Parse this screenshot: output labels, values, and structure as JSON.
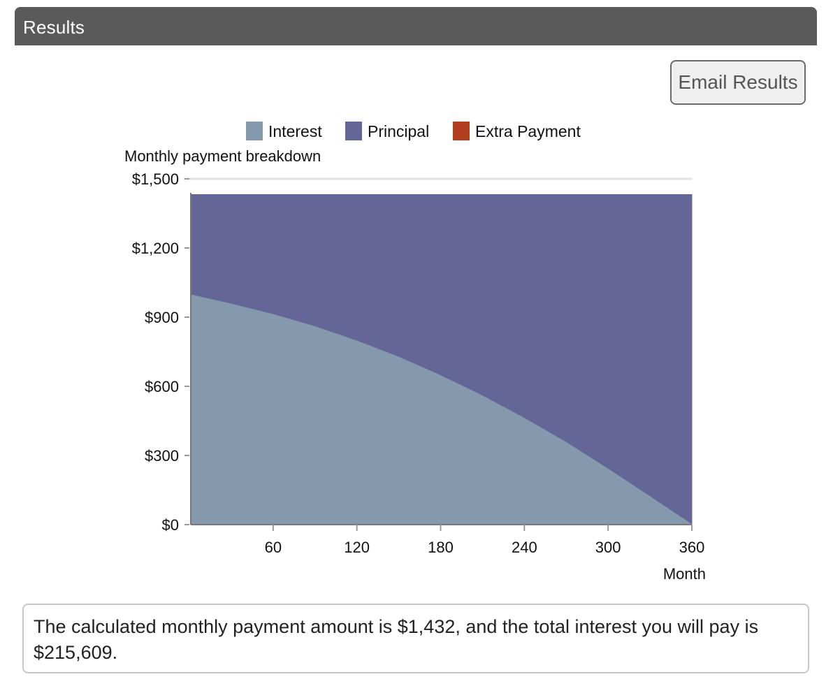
{
  "header": {
    "title": "Results"
  },
  "email_button": {
    "label": "Email Results"
  },
  "chart_data": {
    "type": "area",
    "stacked": true,
    "title": "Monthly payment breakdown",
    "xlabel": "Month",
    "ylabel": "",
    "xlim": [
      1,
      360
    ],
    "ylim": [
      0,
      1500
    ],
    "x_ticks": [
      60,
      120,
      180,
      240,
      300,
      360
    ],
    "x_tick_labels": [
      "60",
      "120",
      "180",
      "240",
      "300",
      "360"
    ],
    "y_ticks": [
      0,
      300,
      600,
      900,
      1200,
      1500
    ],
    "y_tick_labels": [
      "$0",
      "$300",
      "$600",
      "$900",
      "$1,200",
      "$1,500"
    ],
    "legend": {
      "position": "top-center"
    },
    "series": [
      {
        "name": "Interest",
        "color": "#8499ab",
        "x": [
          1,
          30,
          60,
          90,
          120,
          150,
          180,
          210,
          240,
          270,
          300,
          330,
          360
        ],
        "values": [
          1000,
          960,
          915,
          862,
          800,
          730,
          650,
          562,
          465,
          360,
          245,
          125,
          4
        ]
      },
      {
        "name": "Principal",
        "color": "#646698",
        "x": [
          1,
          30,
          60,
          90,
          120,
          150,
          180,
          210,
          240,
          270,
          300,
          330,
          360
        ],
        "values": [
          432,
          472,
          517,
          570,
          632,
          702,
          782,
          870,
          967,
          1072,
          1187,
          1307,
          1428
        ]
      },
      {
        "name": "Extra Payment",
        "color": "#b13e1f",
        "x": [
          1,
          30,
          60,
          90,
          120,
          150,
          180,
          210,
          240,
          270,
          300,
          330,
          360
        ],
        "values": [
          0,
          0,
          0,
          0,
          0,
          0,
          0,
          0,
          0,
          0,
          0,
          0,
          0
        ]
      }
    ]
  },
  "result": {
    "text": "The calculated monthly payment amount is $1,432, and the total interest you will pay is $215,609."
  }
}
